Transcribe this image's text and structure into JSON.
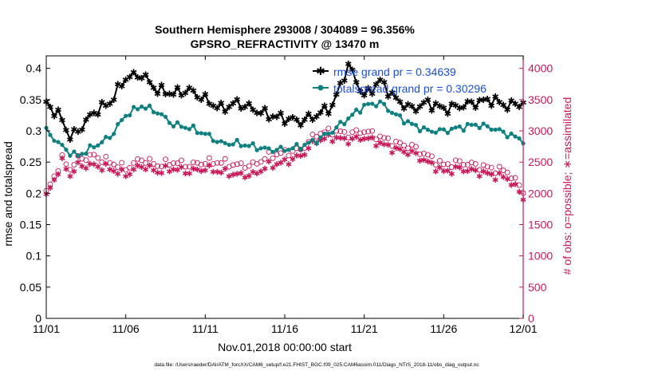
{
  "chart_data": {
    "type": "line",
    "title_line1": "Southern Hemisphere 293008 / 304089 = 96.356%",
    "title_line2": "GPSRO_REFRACTIVITY @ 13470 m",
    "xlabel": "Nov.01,2018 00:00:00 start",
    "ylabel_left": "rmse and totalspread",
    "ylabel_right": "# of obs: o=possible; ∗=assimilated",
    "footer": "data file: /Users/raeder/DAI/ATM_forcXX/CAM6_setup/f.e21.FHIST_BGC.f09_025.CAM6assim.011/Diags_NTrS_2018-11/obs_diag_output.nc",
    "xlim": [
      0,
      30
    ],
    "ylim_left": [
      0,
      0.42
    ],
    "ylim_right": [
      0,
      4200
    ],
    "x_ticks": [
      0,
      5,
      10,
      15,
      20,
      25,
      30
    ],
    "x_tick_labels": [
      "11/01",
      "11/06",
      "11/11",
      "11/16",
      "11/21",
      "11/26",
      "12/01"
    ],
    "y_left_ticks": [
      0,
      0.05,
      0.1,
      0.15,
      0.2,
      0.25,
      0.3,
      0.35,
      0.4
    ],
    "y_left_tick_labels": [
      "0",
      "0.05",
      "0.1",
      "0.15",
      "0.2",
      "0.25",
      "0.3",
      "0.35",
      "0.4"
    ],
    "y_right_ticks": [
      0,
      500,
      1000,
      1500,
      2000,
      2500,
      3000,
      3500,
      4000
    ],
    "y_right_tick_labels": [
      "0",
      "500",
      "1000",
      "1500",
      "2000",
      "2500",
      "3000",
      "3500",
      "4000"
    ],
    "colors": {
      "rmse": "#000000",
      "spread": "#0e8080",
      "obs": "#c8185a",
      "legend_text": "#1a4fd6"
    },
    "legend": {
      "placement": "top-right",
      "entries": [
        "rmse grand pr = 0.34639",
        "totalspread grand pr = 0.30296"
      ]
    },
    "anchors_x": [
      0,
      1,
      1.5,
      2,
      3,
      4,
      5,
      6,
      7,
      8,
      9,
      10,
      11,
      12,
      13,
      14,
      15,
      16,
      17,
      18,
      19,
      20,
      21,
      22,
      23,
      24,
      25,
      26,
      27,
      28,
      29,
      30
    ],
    "series": [
      {
        "name": "rmse",
        "interval": 0.25,
        "anchor_values": [
          0.345,
          0.318,
          0.29,
          0.3,
          0.33,
          0.345,
          0.385,
          0.39,
          0.365,
          0.36,
          0.365,
          0.35,
          0.335,
          0.345,
          0.335,
          0.325,
          0.32,
          0.315,
          0.325,
          0.34,
          0.405,
          0.355,
          0.38,
          0.35,
          0.335,
          0.345,
          0.335,
          0.34,
          0.345,
          0.35,
          0.34,
          0.345
        ]
      },
      {
        "name": "totalspread",
        "interval": 0.25,
        "anchor_values": [
          0.3,
          0.275,
          0.265,
          0.26,
          0.275,
          0.29,
          0.325,
          0.34,
          0.33,
          0.31,
          0.305,
          0.295,
          0.28,
          0.28,
          0.275,
          0.27,
          0.27,
          0.275,
          0.285,
          0.3,
          0.32,
          0.34,
          0.345,
          0.325,
          0.31,
          0.3,
          0.3,
          0.305,
          0.31,
          0.305,
          0.295,
          0.285
        ]
      },
      {
        "name": "obs_possible",
        "interval": 0.25,
        "anchor_values": [
          2000,
          2550,
          2400,
          2550,
          2600,
          2500,
          2400,
          2550,
          2450,
          2500,
          2450,
          2500,
          2500,
          2450,
          2450,
          2600,
          2650,
          2700,
          2950,
          3000,
          2950,
          3000,
          2900,
          2800,
          2750,
          2600,
          2450,
          2500,
          2450,
          2400,
          2350,
          2050
        ]
      },
      {
        "name": "obs_assimilated",
        "interval": 0.25,
        "anchor_values": [
          1950,
          2500,
          2300,
          2450,
          2450,
          2400,
          2300,
          2450,
          2350,
          2400,
          2350,
          2400,
          2350,
          2300,
          2300,
          2450,
          2500,
          2600,
          2850,
          2900,
          2850,
          2900,
          2800,
          2700,
          2650,
          2500,
          2350,
          2400,
          2350,
          2300,
          2250,
          1950
        ]
      }
    ]
  }
}
